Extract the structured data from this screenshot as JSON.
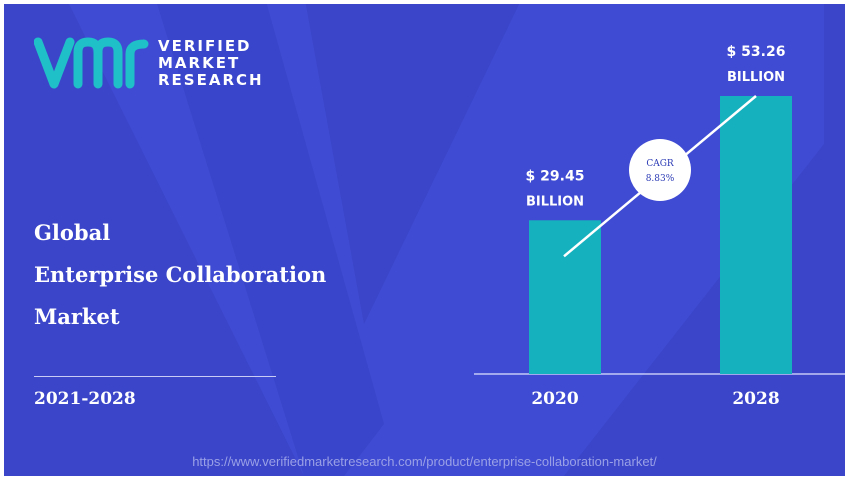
{
  "brand": {
    "line1": "VERIFIED",
    "line2": "MARKET",
    "line3": "RESEARCH",
    "logo_color": "#1fc0c7"
  },
  "title": {
    "line1": "Global",
    "line2": "Enterprise Collaboration",
    "line3": "Market"
  },
  "period": "2021-2028",
  "footer": {
    "url": "https://www.verifiedmarketresearch.com/product/enterprise-collaboration-market/"
  },
  "colors": {
    "background": "#3a45c9",
    "bar": "#16b1bf",
    "text": "#ffffff"
  },
  "chart_data": {
    "type": "bar",
    "categories": [
      "2020",
      "2028"
    ],
    "values": [
      29.45,
      53.26
    ],
    "value_labels": [
      {
        "amount": "$ 29.45",
        "unit": "BILLION"
      },
      {
        "amount": "$ 53.26",
        "unit": "BILLION"
      }
    ],
    "annotation": {
      "label": "CAGR",
      "value": "8.83%"
    },
    "ylim": [
      0,
      53.26
    ],
    "grid": false,
    "legend": "none"
  }
}
